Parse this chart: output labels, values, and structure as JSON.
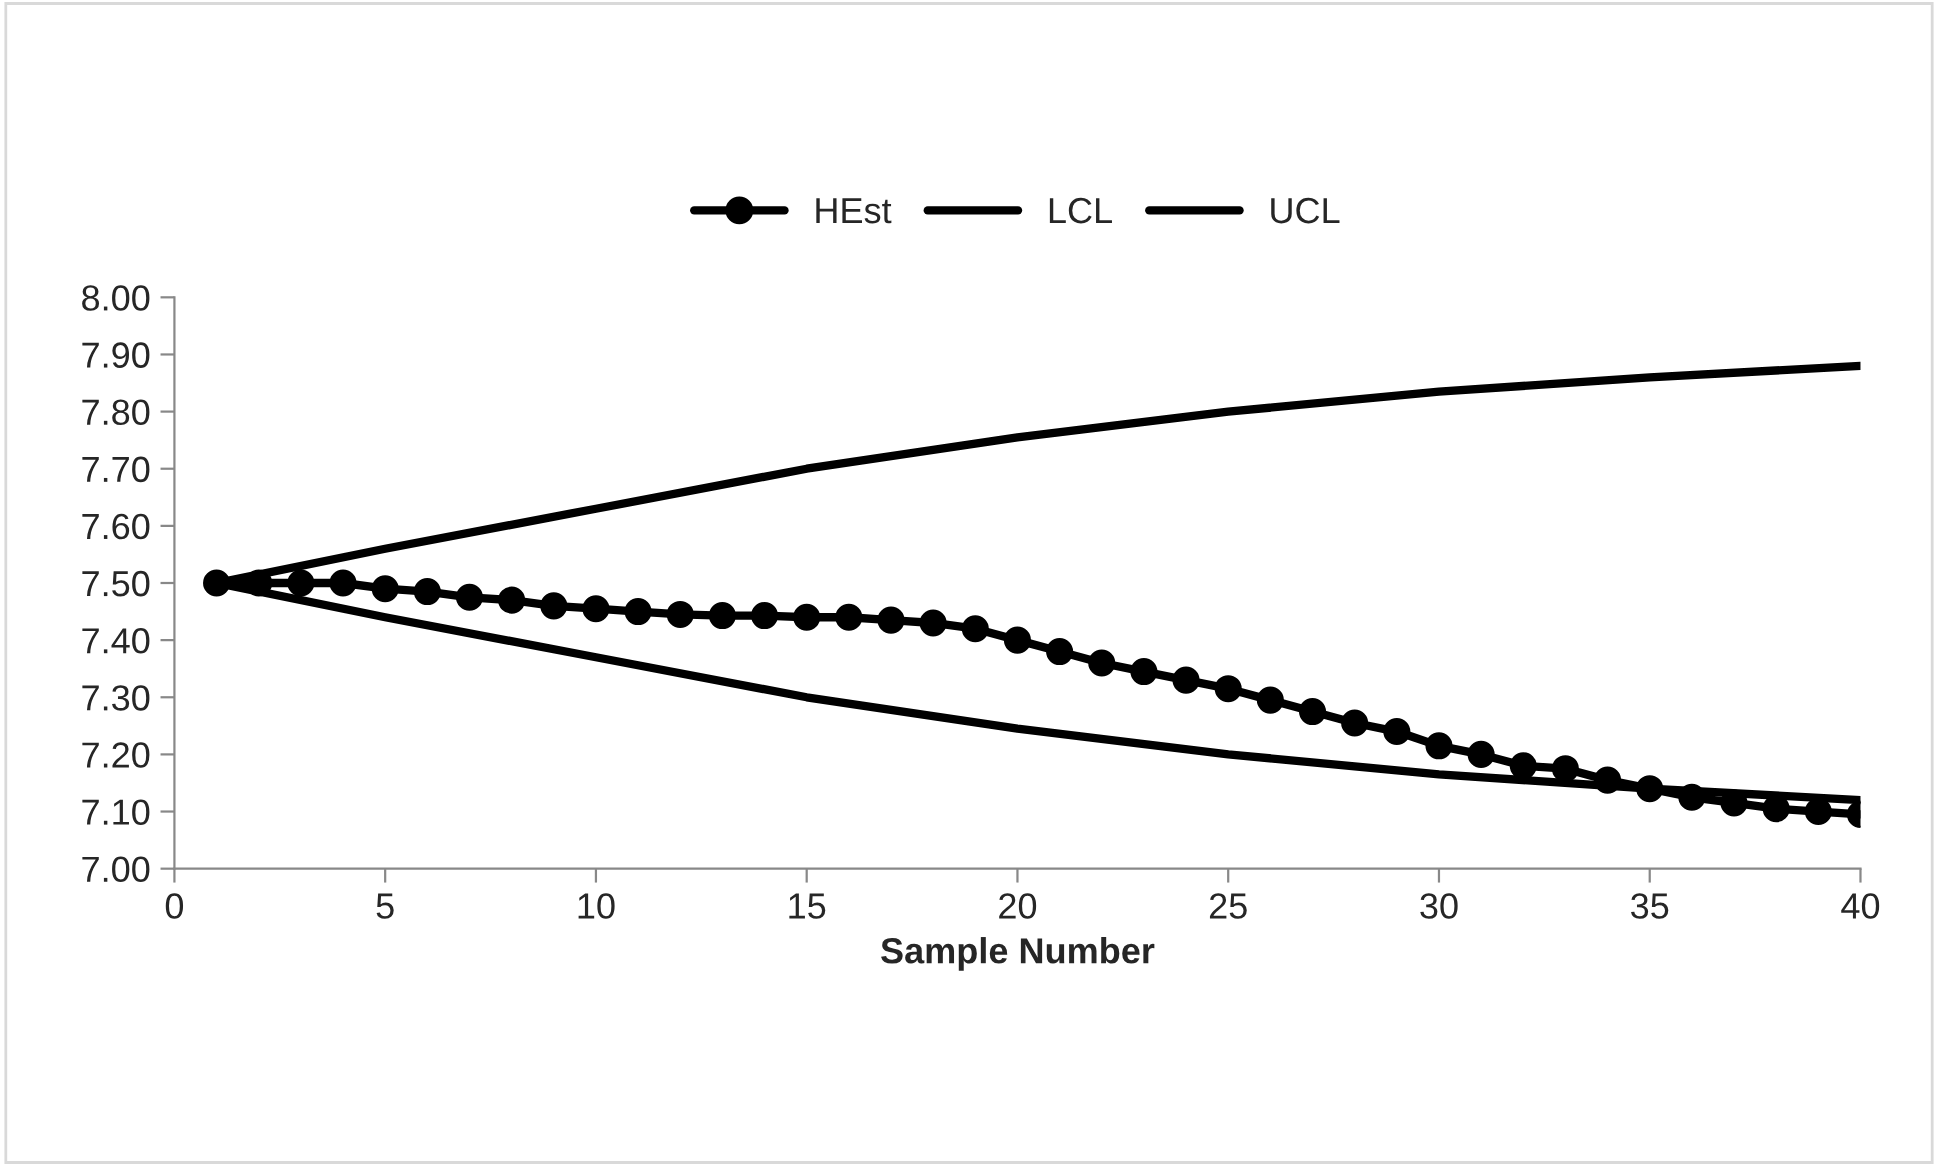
{
  "chart_data": {
    "type": "line",
    "xlabel": "Sample Number",
    "xlim": [
      0,
      40
    ],
    "xticks": [
      0,
      5,
      10,
      15,
      20,
      25,
      30,
      35,
      40
    ],
    "ylim": [
      7.0,
      8.0
    ],
    "yticks": [
      {
        "value": 7.0,
        "label": "7.00"
      },
      {
        "value": 7.1,
        "label": "7.10"
      },
      {
        "value": 7.2,
        "label": "7.20"
      },
      {
        "value": 7.3,
        "label": "7.30"
      },
      {
        "value": 7.4,
        "label": "7.40"
      },
      {
        "value": 7.5,
        "label": "7.50"
      },
      {
        "value": 7.6,
        "label": "7.60"
      },
      {
        "value": 7.7,
        "label": "7.70"
      },
      {
        "value": 7.8,
        "label": "7.80"
      },
      {
        "value": 7.9,
        "label": "7.90"
      },
      {
        "value": 8.0,
        "label": "8.00"
      }
    ],
    "grid": false,
    "legend": "top",
    "series": [
      {
        "name": "HEst",
        "color": "#000000",
        "marker": "circle",
        "x": [
          1,
          2,
          3,
          4,
          5,
          6,
          7,
          8,
          9,
          10,
          11,
          12,
          13,
          14,
          15,
          16,
          17,
          18,
          19,
          20,
          21,
          22,
          23,
          24,
          25,
          26,
          27,
          28,
          29,
          30,
          31,
          32,
          33,
          34,
          35,
          36,
          37,
          38,
          39,
          40
        ],
        "values": [
          7.5,
          7.5,
          7.5,
          7.5,
          7.49,
          7.485,
          7.475,
          7.47,
          7.46,
          7.455,
          7.45,
          7.445,
          7.443,
          7.443,
          7.44,
          7.44,
          7.435,
          7.43,
          7.42,
          7.4,
          7.38,
          7.36,
          7.345,
          7.33,
          7.315,
          7.295,
          7.275,
          7.255,
          7.24,
          7.215,
          7.2,
          7.18,
          7.175,
          7.155,
          7.14,
          7.125,
          7.115,
          7.105,
          7.1,
          7.095
        ]
      },
      {
        "name": "LCL",
        "color": "#000000",
        "x": [
          1,
          5,
          10,
          15,
          20,
          25,
          30,
          35,
          40
        ],
        "values": [
          7.5,
          7.44,
          7.37,
          7.3,
          7.245,
          7.2,
          7.165,
          7.14,
          7.12
        ]
      },
      {
        "name": "UCL",
        "color": "#000000",
        "x": [
          1,
          5,
          10,
          15,
          20,
          25,
          30,
          35,
          40
        ],
        "values": [
          7.5,
          7.56,
          7.63,
          7.7,
          7.755,
          7.8,
          7.835,
          7.86,
          7.88
        ]
      }
    ]
  }
}
